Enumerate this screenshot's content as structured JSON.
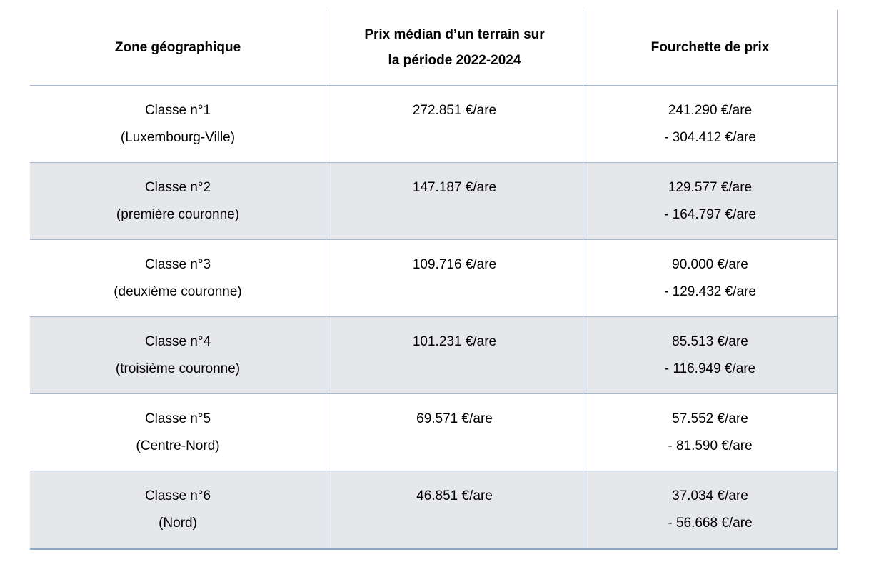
{
  "table": {
    "headers": {
      "zone": "Zone géographique",
      "median_line1": "Prix médian d’un terrain sur",
      "median_line2": "la période 2022-2024",
      "range": "Fourchette de prix"
    },
    "rows": [
      {
        "zone": "Classe n°1",
        "zone_detail": "(Luxembourg-Ville)",
        "median": "272.851 €/are",
        "range_low": "241.290 €/are",
        "range_high": "- 304.412 €/are"
      },
      {
        "zone": "Classe n°2",
        "zone_detail": "(première couronne)",
        "median": "147.187 €/are",
        "range_low": "129.577 €/are",
        "range_high": "- 164.797 €/are"
      },
      {
        "zone": "Classe n°3",
        "zone_detail": "(deuxième couronne)",
        "median": "109.716 €/are",
        "range_low": "90.000 €/are",
        "range_high": "- 129.432 €/are"
      },
      {
        "zone": "Classe n°4",
        "zone_detail": "(troisième couronne)",
        "median": "101.231 €/are",
        "range_low": "85.513 €/are",
        "range_high": "- 116.949 €/are"
      },
      {
        "zone": "Classe n°5",
        "zone_detail": "(Centre-Nord)",
        "median": "69.571 €/are",
        "range_low": "57.552 €/are",
        "range_high": "- 81.590 €/are"
      },
      {
        "zone": "Classe n°6",
        "zone_detail": "(Nord)",
        "median": "46.851 €/are",
        "range_low": "37.034 €/are",
        "range_high": "- 56.668 €/are"
      }
    ],
    "colors": {
      "row_alt_background": "#e6e7eb",
      "grid_line": "#a7b9d2",
      "outer_bottom_line": "#8fa6c5",
      "text": "#000000"
    }
  }
}
